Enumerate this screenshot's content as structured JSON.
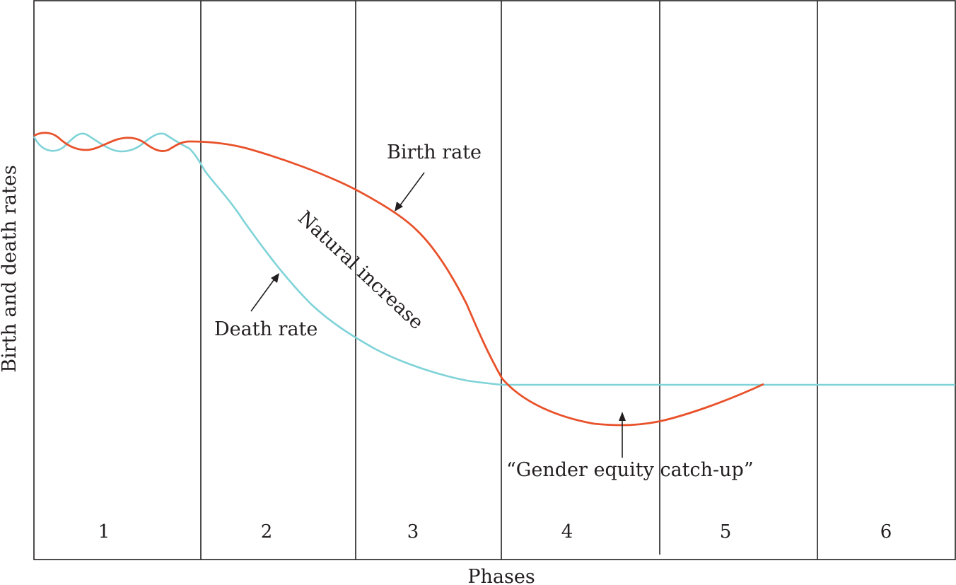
{
  "diagram": {
    "ylabel": "Birth and death rates",
    "xlabel": "Phases",
    "phases": [
      "1",
      "2",
      "3",
      "4",
      "5",
      "6"
    ],
    "annotations": {
      "birth_rate": "Birth rate",
      "death_rate": "Death rate",
      "natural_increase": "Natural increase",
      "gender_equity": "“Gender equity catch-up”"
    },
    "colors": {
      "birth_rate": "#e8512a",
      "death_rate": "#7fd3d8",
      "frame": "#231f20"
    }
  }
}
